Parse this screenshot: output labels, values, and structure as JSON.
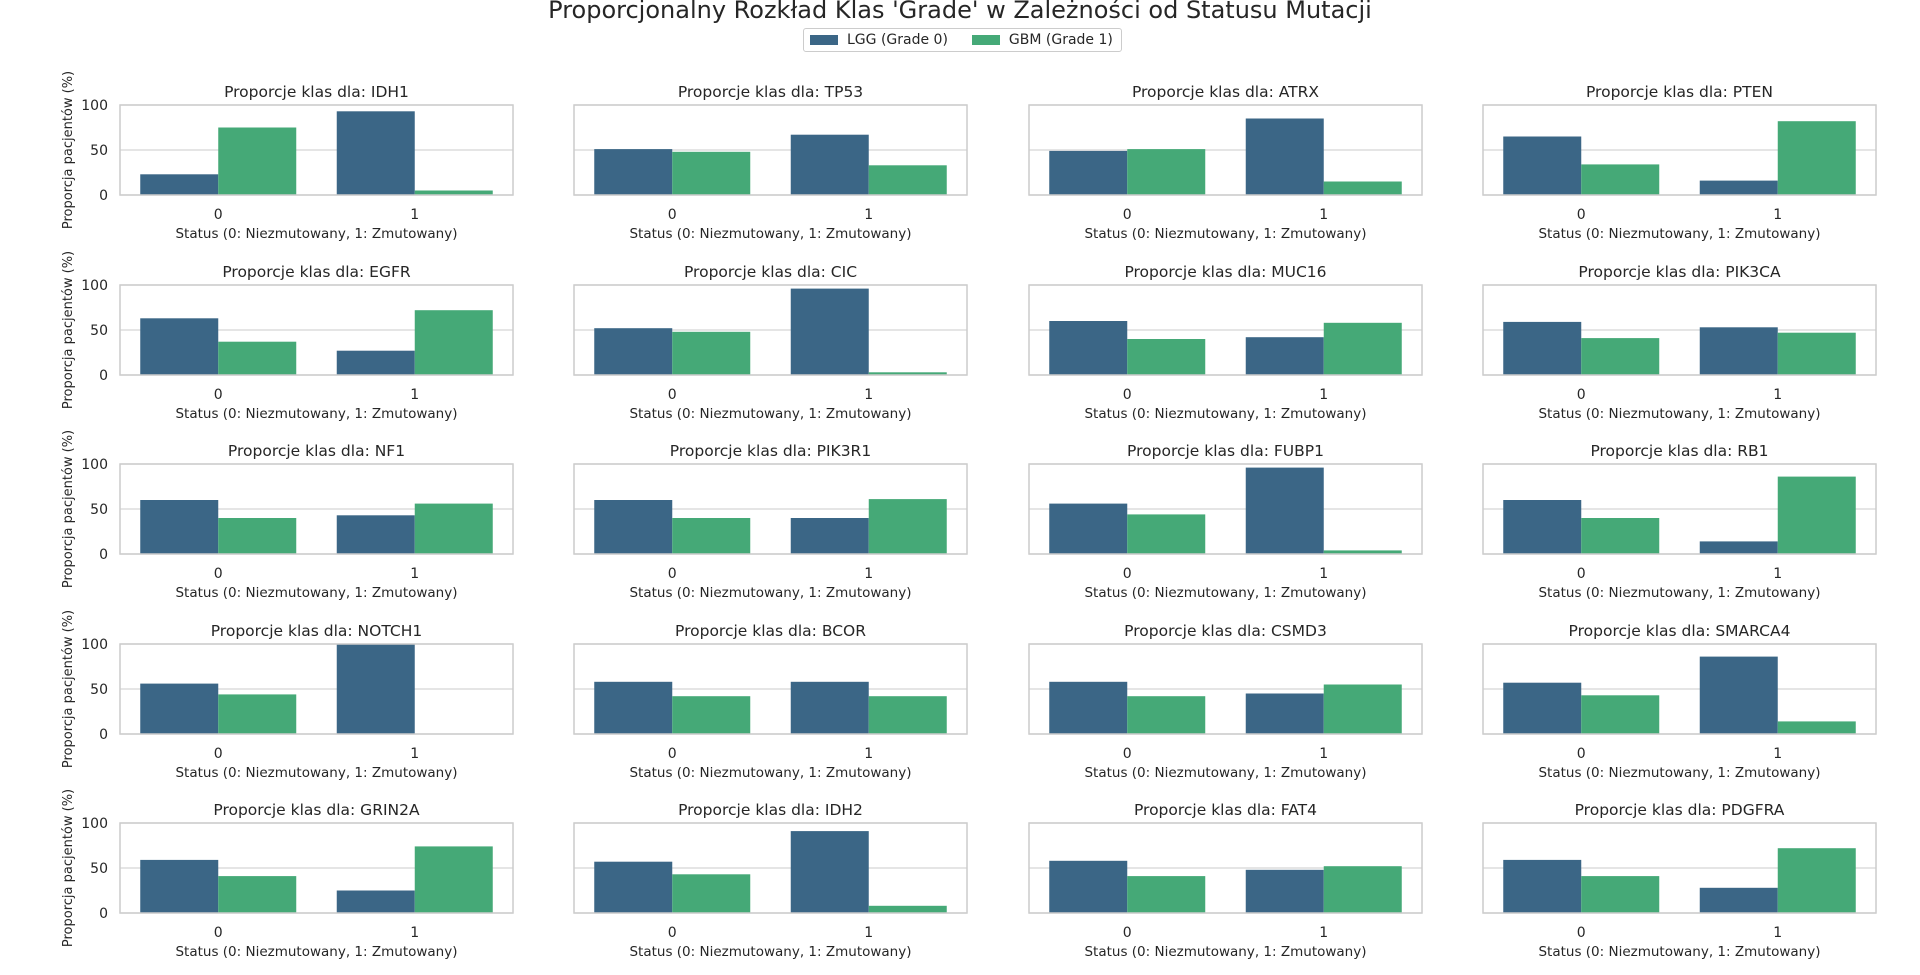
{
  "title": "Proporcjonalny Rozkład Klas 'Grade' w Zależności od Statusu Mutacji",
  "legend": [
    {
      "label": "LGG (Grade 0)",
      "color": "#3b6686"
    },
    {
      "label": "GBM (Grade 1)",
      "color": "#45a977"
    }
  ],
  "chart_data": [
    {
      "type": "bar",
      "title": "Proporcje klas dla: IDH1",
      "xlabel": "Status (0: Niezmutowany, 1: Zmutowany)",
      "ylabel": "Proporcja pacjentów (%)",
      "categories": [
        "0",
        "1"
      ],
      "yticks": [
        "0",
        "50",
        "100"
      ],
      "ylim": [
        0,
        100
      ],
      "series": [
        {
          "name": "LGG (Grade 0)",
          "values": [
            23,
            93
          ]
        },
        {
          "name": "GBM (Grade 1)",
          "values": [
            75,
            5
          ]
        }
      ]
    },
    {
      "type": "bar",
      "title": "Proporcje klas dla: TP53",
      "xlabel": "Status (0: Niezmutowany, 1: Zmutowany)",
      "ylabel": "",
      "categories": [
        "0",
        "1"
      ],
      "yticks": [],
      "ylim": [
        0,
        100
      ],
      "series": [
        {
          "name": "LGG (Grade 0)",
          "values": [
            51,
            67
          ]
        },
        {
          "name": "GBM (Grade 1)",
          "values": [
            48,
            33
          ]
        }
      ]
    },
    {
      "type": "bar",
      "title": "Proporcje klas dla: ATRX",
      "xlabel": "Status (0: Niezmutowany, 1: Zmutowany)",
      "ylabel": "",
      "categories": [
        "0",
        "1"
      ],
      "yticks": [],
      "ylim": [
        0,
        100
      ],
      "series": [
        {
          "name": "LGG (Grade 0)",
          "values": [
            49,
            85
          ]
        },
        {
          "name": "GBM (Grade 1)",
          "values": [
            51,
            15
          ]
        }
      ]
    },
    {
      "type": "bar",
      "title": "Proporcje klas dla: PTEN",
      "xlabel": "Status (0: Niezmutowany, 1: Zmutowany)",
      "ylabel": "",
      "categories": [
        "0",
        "1"
      ],
      "yticks": [],
      "ylim": [
        0,
        100
      ],
      "series": [
        {
          "name": "LGG (Grade 0)",
          "values": [
            65,
            16
          ]
        },
        {
          "name": "GBM (Grade 1)",
          "values": [
            34,
            82
          ]
        }
      ]
    },
    {
      "type": "bar",
      "title": "Proporcje klas dla: EGFR",
      "xlabel": "Status (0: Niezmutowany, 1: Zmutowany)",
      "ylabel": "Proporcja pacjentów (%)",
      "categories": [
        "0",
        "1"
      ],
      "yticks": [
        "0",
        "50",
        "100"
      ],
      "ylim": [
        0,
        100
      ],
      "series": [
        {
          "name": "LGG (Grade 0)",
          "values": [
            63,
            27
          ]
        },
        {
          "name": "GBM (Grade 1)",
          "values": [
            37,
            72
          ]
        }
      ]
    },
    {
      "type": "bar",
      "title": "Proporcje klas dla: CIC",
      "xlabel": "Status (0: Niezmutowany, 1: Zmutowany)",
      "ylabel": "",
      "categories": [
        "0",
        "1"
      ],
      "yticks": [],
      "ylim": [
        0,
        100
      ],
      "series": [
        {
          "name": "LGG (Grade 0)",
          "values": [
            52,
            96
          ]
        },
        {
          "name": "GBM (Grade 1)",
          "values": [
            48,
            3
          ]
        }
      ]
    },
    {
      "type": "bar",
      "title": "Proporcje klas dla: MUC16",
      "xlabel": "Status (0: Niezmutowany, 1: Zmutowany)",
      "ylabel": "",
      "categories": [
        "0",
        "1"
      ],
      "yticks": [],
      "ylim": [
        0,
        100
      ],
      "series": [
        {
          "name": "LGG (Grade 0)",
          "values": [
            60,
            42
          ]
        },
        {
          "name": "GBM (Grade 1)",
          "values": [
            40,
            58
          ]
        }
      ]
    },
    {
      "type": "bar",
      "title": "Proporcje klas dla: PIK3CA",
      "xlabel": "Status (0: Niezmutowany, 1: Zmutowany)",
      "ylabel": "",
      "categories": [
        "0",
        "1"
      ],
      "yticks": [],
      "ylim": [
        0,
        100
      ],
      "series": [
        {
          "name": "LGG (Grade 0)",
          "values": [
            59,
            53
          ]
        },
        {
          "name": "GBM (Grade 1)",
          "values": [
            41,
            47
          ]
        }
      ]
    },
    {
      "type": "bar",
      "title": "Proporcje klas dla: NF1",
      "xlabel": "Status (0: Niezmutowany, 1: Zmutowany)",
      "ylabel": "Proporcja pacjentów (%)",
      "categories": [
        "0",
        "1"
      ],
      "yticks": [
        "0",
        "50",
        "100"
      ],
      "ylim": [
        0,
        100
      ],
      "series": [
        {
          "name": "LGG (Grade 0)",
          "values": [
            60,
            43
          ]
        },
        {
          "name": "GBM (Grade 1)",
          "values": [
            40,
            56
          ]
        }
      ]
    },
    {
      "type": "bar",
      "title": "Proporcje klas dla: PIK3R1",
      "xlabel": "Status (0: Niezmutowany, 1: Zmutowany)",
      "ylabel": "",
      "categories": [
        "0",
        "1"
      ],
      "yticks": [],
      "ylim": [
        0,
        100
      ],
      "series": [
        {
          "name": "LGG (Grade 0)",
          "values": [
            60,
            40
          ]
        },
        {
          "name": "GBM (Grade 1)",
          "values": [
            40,
            61
          ]
        }
      ]
    },
    {
      "type": "bar",
      "title": "Proporcje klas dla: FUBP1",
      "xlabel": "Status (0: Niezmutowany, 1: Zmutowany)",
      "ylabel": "",
      "categories": [
        "0",
        "1"
      ],
      "yticks": [],
      "ylim": [
        0,
        100
      ],
      "series": [
        {
          "name": "LGG (Grade 0)",
          "values": [
            56,
            96
          ]
        },
        {
          "name": "GBM (Grade 1)",
          "values": [
            44,
            4
          ]
        }
      ]
    },
    {
      "type": "bar",
      "title": "Proporcje klas dla: RB1",
      "xlabel": "Status (0: Niezmutowany, 1: Zmutowany)",
      "ylabel": "",
      "categories": [
        "0",
        "1"
      ],
      "yticks": [],
      "ylim": [
        0,
        100
      ],
      "series": [
        {
          "name": "LGG (Grade 0)",
          "values": [
            60,
            14
          ]
        },
        {
          "name": "GBM (Grade 1)",
          "values": [
            40,
            86
          ]
        }
      ]
    },
    {
      "type": "bar",
      "title": "Proporcje klas dla: NOTCH1",
      "xlabel": "Status (0: Niezmutowany, 1: Zmutowany)",
      "ylabel": "Proporcja pacjentów (%)",
      "categories": [
        "0",
        "1"
      ],
      "yticks": [
        "0",
        "50",
        "100"
      ],
      "ylim": [
        0,
        100
      ],
      "series": [
        {
          "name": "LGG (Grade 0)",
          "values": [
            56,
            100
          ]
        },
        {
          "name": "GBM (Grade 1)",
          "values": [
            44,
            0
          ]
        }
      ]
    },
    {
      "type": "bar",
      "title": "Proporcje klas dla: BCOR",
      "xlabel": "Status (0: Niezmutowany, 1: Zmutowany)",
      "ylabel": "",
      "categories": [
        "0",
        "1"
      ],
      "yticks": [],
      "ylim": [
        0,
        100
      ],
      "series": [
        {
          "name": "LGG (Grade 0)",
          "values": [
            58,
            58
          ]
        },
        {
          "name": "GBM (Grade 1)",
          "values": [
            42,
            42
          ]
        }
      ]
    },
    {
      "type": "bar",
      "title": "Proporcje klas dla: CSMD3",
      "xlabel": "Status (0: Niezmutowany, 1: Zmutowany)",
      "ylabel": "",
      "categories": [
        "0",
        "1"
      ],
      "yticks": [],
      "ylim": [
        0,
        100
      ],
      "series": [
        {
          "name": "LGG (Grade 0)",
          "values": [
            58,
            45
          ]
        },
        {
          "name": "GBM (Grade 1)",
          "values": [
            42,
            55
          ]
        }
      ]
    },
    {
      "type": "bar",
      "title": "Proporcje klas dla: SMARCA4",
      "xlabel": "Status (0: Niezmutowany, 1: Zmutowany)",
      "ylabel": "",
      "categories": [
        "0",
        "1"
      ],
      "yticks": [],
      "ylim": [
        0,
        100
      ],
      "series": [
        {
          "name": "LGG (Grade 0)",
          "values": [
            57,
            86
          ]
        },
        {
          "name": "GBM (Grade 1)",
          "values": [
            43,
            14
          ]
        }
      ]
    },
    {
      "type": "bar",
      "title": "Proporcje klas dla: GRIN2A",
      "xlabel": "Status (0: Niezmutowany, 1: Zmutowany)",
      "ylabel": "Proporcja pacjentów (%)",
      "categories": [
        "0",
        "1"
      ],
      "yticks": [
        "0",
        "50",
        "100"
      ],
      "ylim": [
        0,
        100
      ],
      "series": [
        {
          "name": "LGG (Grade 0)",
          "values": [
            59,
            25
          ]
        },
        {
          "name": "GBM (Grade 1)",
          "values": [
            41,
            74
          ]
        }
      ]
    },
    {
      "type": "bar",
      "title": "Proporcje klas dla: IDH2",
      "xlabel": "Status (0: Niezmutowany, 1: Zmutowany)",
      "ylabel": "",
      "categories": [
        "0",
        "1"
      ],
      "yticks": [],
      "ylim": [
        0,
        100
      ],
      "series": [
        {
          "name": "LGG (Grade 0)",
          "values": [
            57,
            91
          ]
        },
        {
          "name": "GBM (Grade 1)",
          "values": [
            43,
            8
          ]
        }
      ]
    },
    {
      "type": "bar",
      "title": "Proporcje klas dla: FAT4",
      "xlabel": "Status (0: Niezmutowany, 1: Zmutowany)",
      "ylabel": "",
      "categories": [
        "0",
        "1"
      ],
      "yticks": [],
      "ylim": [
        0,
        100
      ],
      "series": [
        {
          "name": "LGG (Grade 0)",
          "values": [
            58,
            48
          ]
        },
        {
          "name": "GBM (Grade 1)",
          "values": [
            41,
            52
          ]
        }
      ]
    },
    {
      "type": "bar",
      "title": "Proporcje klas dla: PDGFRA",
      "xlabel": "Status (0: Niezmutowany, 1: Zmutowany)",
      "ylabel": "",
      "categories": [
        "0",
        "1"
      ],
      "yticks": [],
      "ylim": [
        0,
        100
      ],
      "series": [
        {
          "name": "LGG (Grade 0)",
          "values": [
            59,
            28
          ]
        },
        {
          "name": "GBM (Grade 1)",
          "values": [
            41,
            72
          ]
        }
      ]
    }
  ]
}
